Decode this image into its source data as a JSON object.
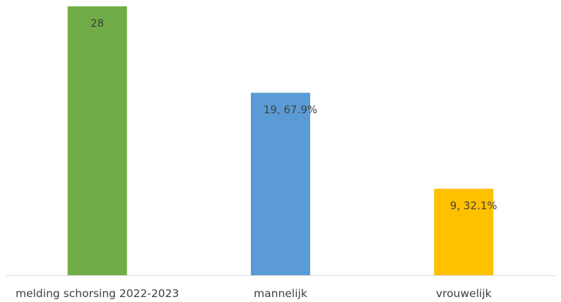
{
  "chart_data": {
    "type": "bar",
    "categories": [
      "melding schorsing 2022-2023",
      "mannelijk",
      "vrouwelijk"
    ],
    "values": [
      28,
      19,
      9
    ],
    "data_labels": [
      "28",
      "19,   67.9%",
      "9,   32.1%"
    ],
    "colors": [
      "#70ad47",
      "#5b9bd5",
      "#ffc000"
    ],
    "ylim": [
      0,
      28
    ],
    "grid": false,
    "legend": "none",
    "axis_line_color": "#d9d9d9"
  }
}
